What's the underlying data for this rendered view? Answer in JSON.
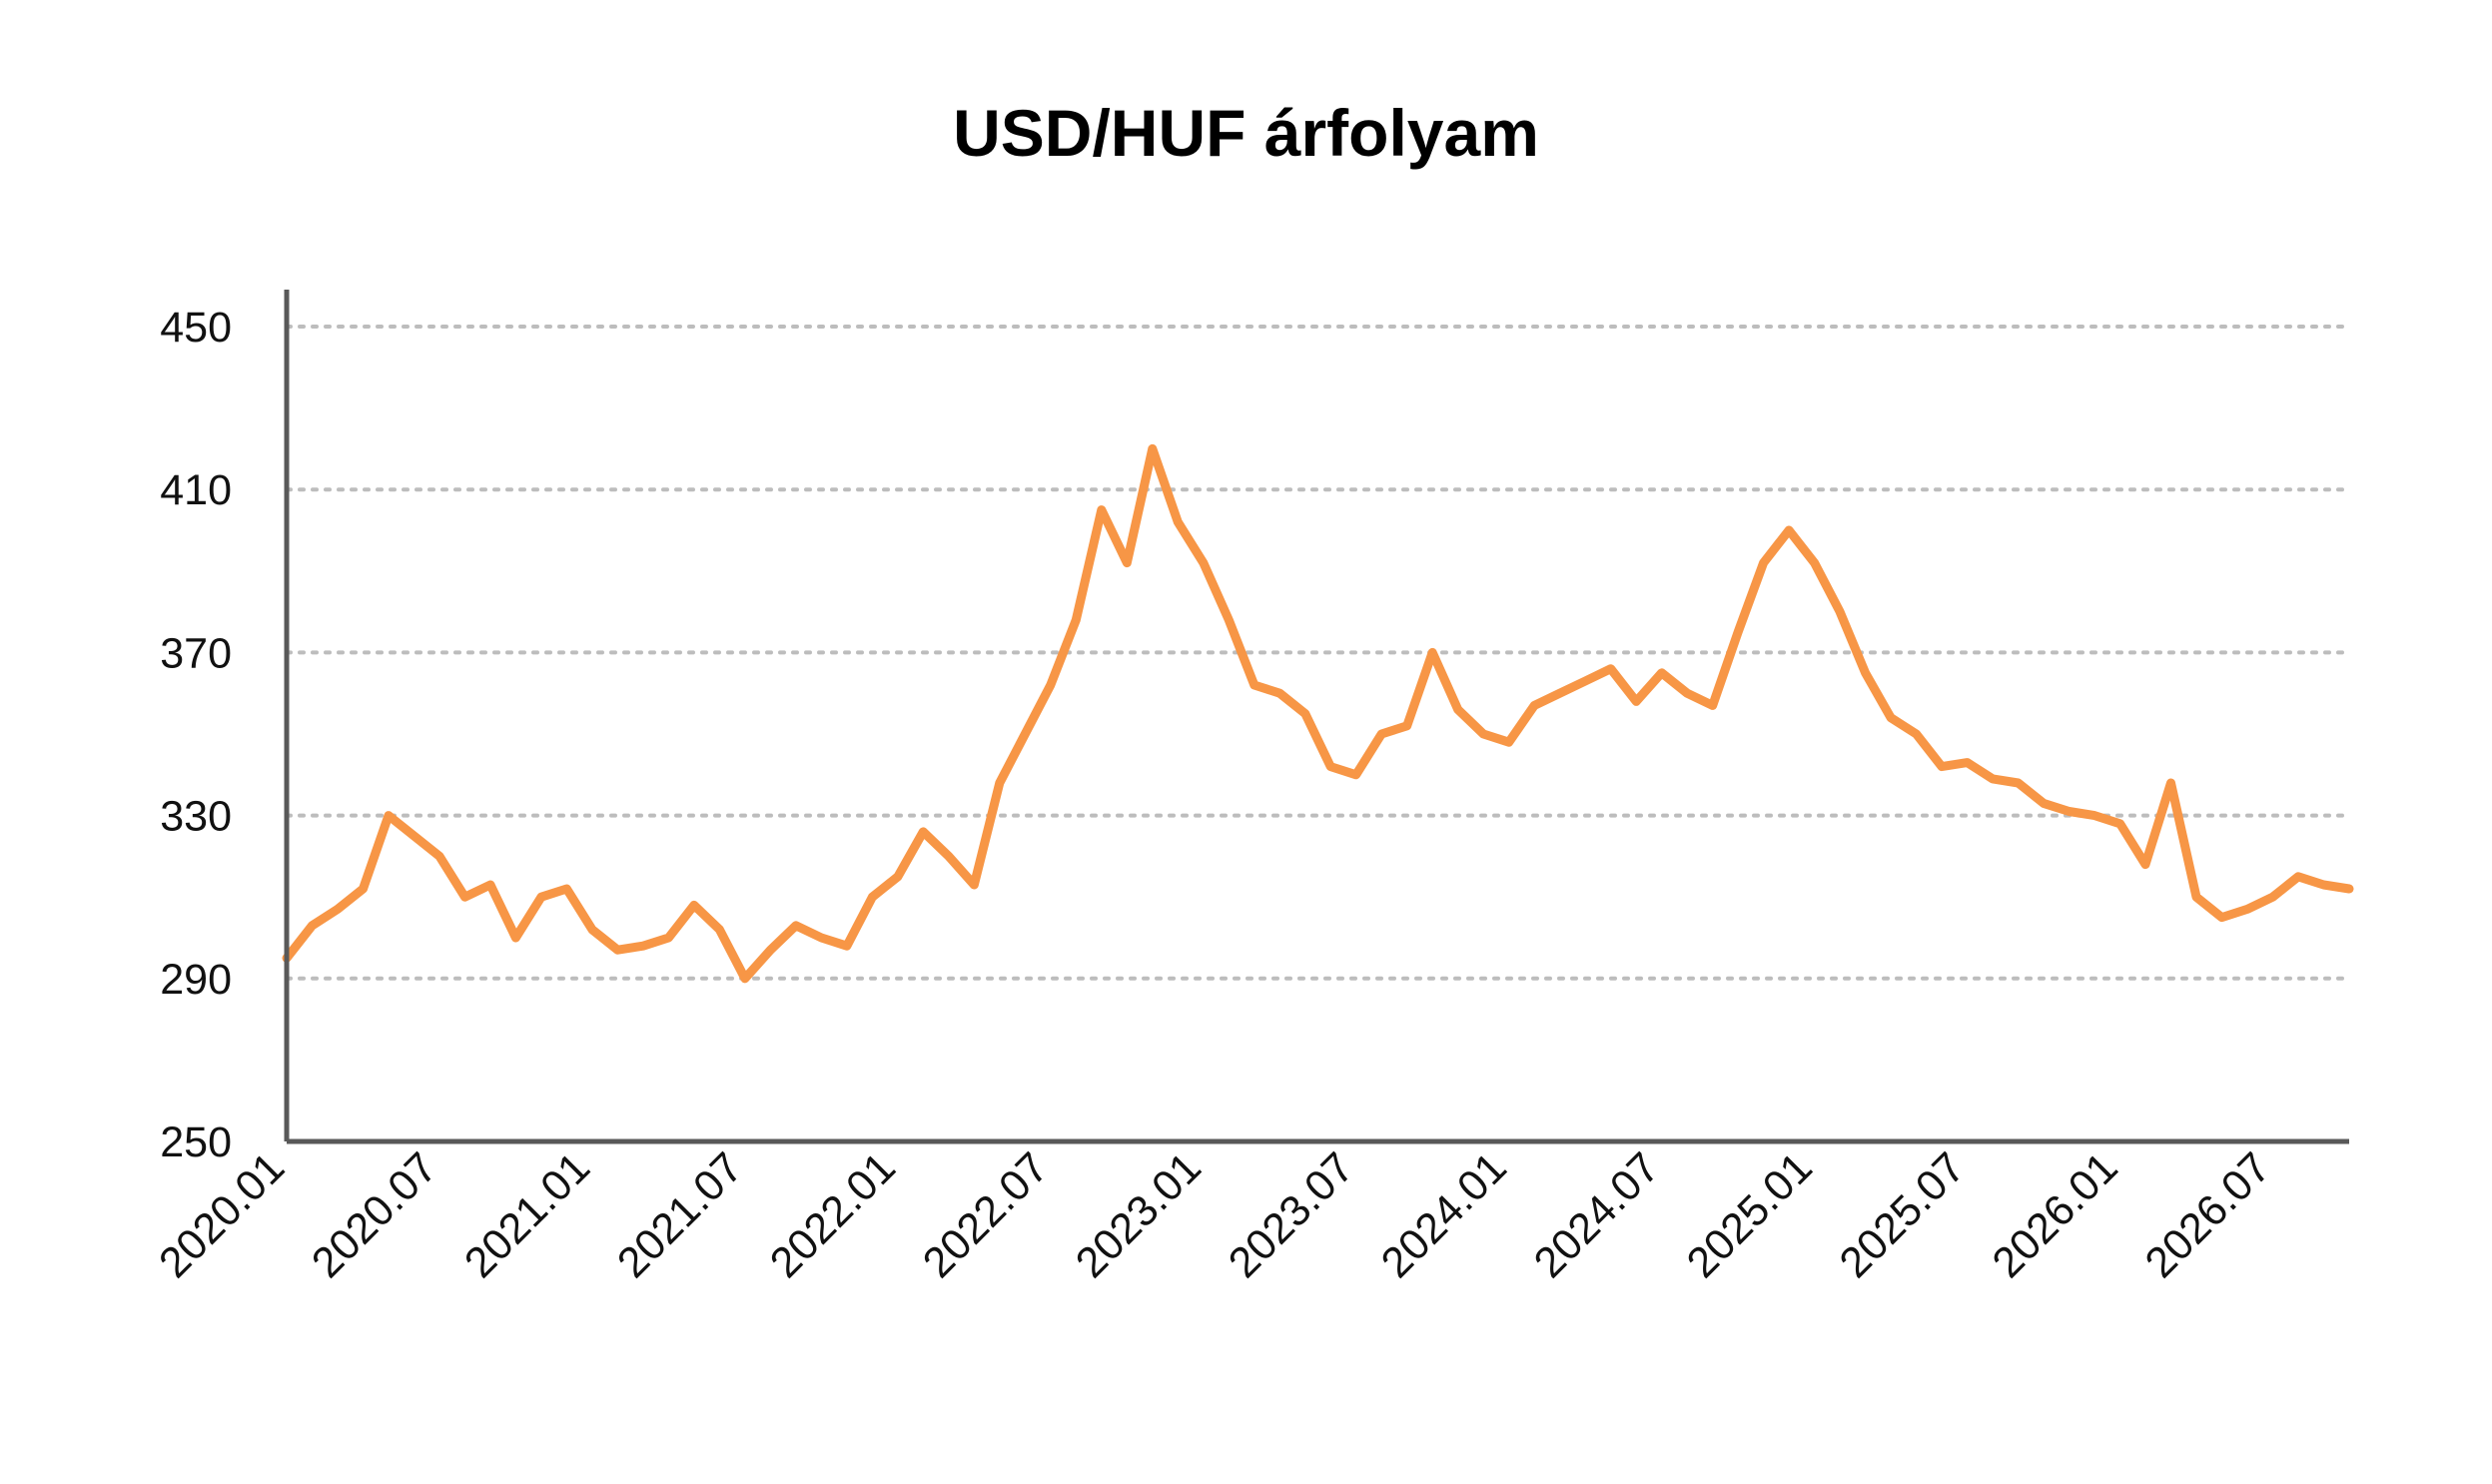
{
  "colors": {
    "line": "#F79646",
    "grid": "#BDBDBD",
    "axis": "#595959"
  },
  "chart_data": {
    "type": "line",
    "title": "USD/HUF árfolyam",
    "xlabel": "",
    "ylabel": "",
    "ylim": [
      250,
      450
    ],
    "yticks": [
      250,
      290,
      330,
      370,
      410,
      450
    ],
    "ytick_labels": [
      "250",
      "290",
      "330",
      "370",
      "410",
      "450"
    ],
    "xlim": [
      "2020-01",
      "2026-10"
    ],
    "xticks": [
      "2020-01",
      "2020-07",
      "2021-01",
      "2021-07",
      "2022-01",
      "2022-07",
      "2023-01",
      "2023-07",
      "2024-01",
      "2024-07",
      "2025-01",
      "2025-07",
      "2026-01",
      "2026-07"
    ],
    "xtick_labels": [
      "2020.01",
      "2020.07",
      "2021.01",
      "2021.07",
      "2022.01",
      "2022.07",
      "2023.01",
      "2023.07",
      "2024.01",
      "2024.07",
      "2025.01",
      "2025.07",
      "2026.01",
      "2026.07"
    ],
    "grid": "horizontal dotted",
    "legend": "none",
    "series": [
      {
        "x": [
          "2020-01",
          "2020-02",
          "2020-03",
          "2020-04",
          "2020-05",
          "2020-06",
          "2020-07",
          "2020-08",
          "2020-09",
          "2020-10",
          "2020-11",
          "2020-12",
          "2021-01",
          "2021-02",
          "2021-03",
          "2021-04",
          "2021-05",
          "2021-06",
          "2021-07",
          "2021-08",
          "2021-09",
          "2021-10",
          "2021-11",
          "2021-12",
          "2022-01",
          "2022-02",
          "2022-03",
          "2022-04",
          "2022-05",
          "2022-06",
          "2022-07",
          "2022-08",
          "2022-09",
          "2022-10",
          "2022-11",
          "2022-12",
          "2023-01",
          "2023-02",
          "2023-03",
          "2023-04",
          "2023-05",
          "2023-06",
          "2023-07",
          "2023-08",
          "2023-09",
          "2023-10",
          "2023-11",
          "2023-12",
          "2024-01",
          "2024-02",
          "2024-03",
          "2024-04",
          "2024-05",
          "2024-06",
          "2024-07",
          "2024-08",
          "2024-09",
          "2024-10",
          "2024-11",
          "2024-12",
          "2025-01",
          "2025-02",
          "2025-03",
          "2025-04",
          "2025-05",
          "2025-06",
          "2025-07",
          "2025-08",
          "2025-09",
          "2025-10",
          "2025-11",
          "2025-12",
          "2026-01",
          "2026-02",
          "2026-03",
          "2026-04",
          "2026-05",
          "2026-06",
          "2026-07",
          "2026-08",
          "2026-09",
          "2026-10"
        ],
        "values": [
          295,
          303,
          307,
          312,
          330,
          325,
          320,
          310,
          313,
          300,
          310,
          312,
          302,
          297,
          298,
          300,
          308,
          302,
          290,
          297,
          303,
          300,
          298,
          310,
          315,
          326,
          320,
          313,
          338,
          350,
          362,
          378,
          405,
          392,
          420,
          402,
          392,
          378,
          362,
          360,
          355,
          342,
          340,
          350,
          352,
          370,
          356,
          350,
          348,
          357,
          360,
          363,
          366,
          358,
          365,
          360,
          357,
          375,
          392,
          400,
          392,
          380,
          365,
          354,
          350,
          342,
          343,
          339,
          338,
          333,
          331,
          330,
          328,
          318,
          338,
          310,
          305,
          307,
          310,
          315,
          313,
          312
        ]
      }
    ]
  }
}
